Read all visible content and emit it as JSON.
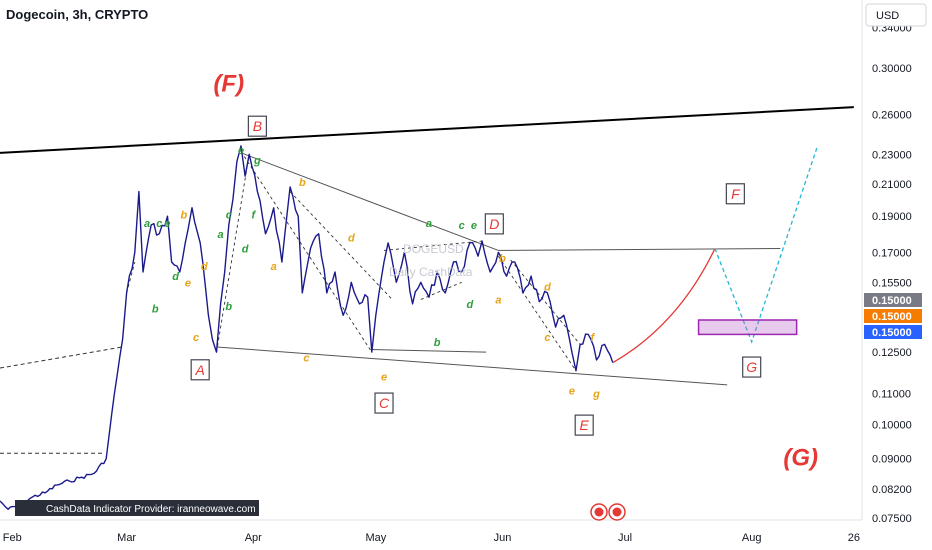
{
  "header": {
    "title": "Dogecoin, 3h, CRYPTO",
    "currency": "USD",
    "watermark_symbol": "DOGEUSD",
    "watermark_text": "Daily CashData"
  },
  "footer": {
    "provider": "CashData Indicator Provider: iranneowave.com"
  },
  "colors": {
    "price_line": "#1b1a8c",
    "wave_red": "#e53935",
    "wave_green": "#2e9e3a",
    "wave_orange": "#e8a317",
    "projection_red": "#e53935",
    "projection_cyan": "#21b7d6",
    "target_box": "#9c27b0",
    "tag_gray": "#787b86",
    "tag_orange": "#f57c00",
    "tag_blue": "#2962ff"
  },
  "price_tags": [
    "0.15000",
    "0.15000",
    "0.15000"
  ],
  "chart_data": {
    "type": "line",
    "title": "Dogecoin, 3h, CRYPTO",
    "y_unit": "USD",
    "y_scale": "log",
    "ylim": [
      0.0745,
      0.37
    ],
    "xlim": [
      "2023-01-29",
      "2023-08-28"
    ],
    "x_ticks": [
      {
        "label": "Feb",
        "date": "2023-02-01"
      },
      {
        "label": "Mar",
        "date": "2023-03-01"
      },
      {
        "label": "Apr",
        "date": "2023-04-01"
      },
      {
        "label": "May",
        "date": "2023-05-01"
      },
      {
        "label": "Jun",
        "date": "2023-06-01"
      },
      {
        "label": "Jul",
        "date": "2023-07-01"
      },
      {
        "label": "Aug",
        "date": "2023-08-01"
      },
      {
        "label": "26",
        "date": "2023-08-26"
      }
    ],
    "y_ticks": [
      "0.34000",
      "0.30000",
      "0.26000",
      "0.23000",
      "0.21000",
      "0.19000",
      "0.17000",
      "0.15500",
      "0.12500",
      "0.11000",
      "0.10000",
      "0.09000",
      "0.08200",
      "0.07500"
    ],
    "series": [
      {
        "values": [
          [
            "2023-01-29",
            0.079
          ],
          [
            "2023-01-31",
            0.077
          ],
          [
            "2023-02-03",
            0.078
          ],
          [
            "2023-02-06",
            0.08
          ],
          [
            "2023-02-09",
            0.081
          ],
          [
            "2023-02-12",
            0.083
          ],
          [
            "2023-02-15",
            0.084
          ],
          [
            "2023-02-18",
            0.085
          ],
          [
            "2023-02-21",
            0.086
          ],
          [
            "2023-02-24",
            0.09
          ],
          [
            "2023-02-26",
            0.11
          ],
          [
            "2023-02-28",
            0.13
          ],
          [
            "2023-03-01",
            0.15
          ],
          [
            "2023-03-03",
            0.17
          ],
          [
            "2023-03-04",
            0.205
          ],
          [
            "2023-03-05",
            0.16
          ],
          [
            "2023-03-07",
            0.185
          ],
          [
            "2023-03-09",
            0.18
          ],
          [
            "2023-03-11",
            0.19
          ],
          [
            "2023-03-12",
            0.165
          ],
          [
            "2023-03-14",
            0.16
          ],
          [
            "2023-03-16",
            0.182
          ],
          [
            "2023-03-17",
            0.195
          ],
          [
            "2023-03-19",
            0.175
          ],
          [
            "2023-03-21",
            0.14
          ],
          [
            "2023-03-22",
            0.13
          ],
          [
            "2023-03-23",
            0.125
          ],
          [
            "2023-03-24",
            0.145
          ],
          [
            "2023-03-25",
            0.16
          ],
          [
            "2023-03-26",
            0.185
          ],
          [
            "2023-03-27",
            0.2
          ],
          [
            "2023-03-28",
            0.225
          ],
          [
            "2023-03-29",
            0.236
          ],
          [
            "2023-03-30",
            0.215
          ],
          [
            "2023-03-31",
            0.23
          ],
          [
            "2023-04-02",
            0.205
          ],
          [
            "2023-04-04",
            0.18
          ],
          [
            "2023-04-06",
            0.195
          ],
          [
            "2023-04-08",
            0.165
          ],
          [
            "2023-04-10",
            0.208
          ],
          [
            "2023-04-12",
            0.19
          ],
          [
            "2023-04-13",
            0.15
          ],
          [
            "2023-04-15",
            0.172
          ],
          [
            "2023-04-17",
            0.18
          ],
          [
            "2023-04-19",
            0.15
          ],
          [
            "2023-04-21",
            0.16
          ],
          [
            "2023-04-23",
            0.14
          ],
          [
            "2023-04-25",
            0.155
          ],
          [
            "2023-04-27",
            0.145
          ],
          [
            "2023-04-29",
            0.148
          ],
          [
            "2023-04-30",
            0.125
          ],
          [
            "2023-05-01",
            0.14
          ],
          [
            "2023-05-03",
            0.165
          ],
          [
            "2023-05-04",
            0.175
          ],
          [
            "2023-05-06",
            0.155
          ],
          [
            "2023-05-08",
            0.17
          ],
          [
            "2023-05-10",
            0.145
          ],
          [
            "2023-05-12",
            0.155
          ],
          [
            "2023-05-14",
            0.148
          ],
          [
            "2023-05-16",
            0.16
          ],
          [
            "2023-05-18",
            0.15
          ],
          [
            "2023-05-20",
            0.165
          ],
          [
            "2023-05-22",
            0.16
          ],
          [
            "2023-05-24",
            0.175
          ],
          [
            "2023-05-26",
            0.168
          ],
          [
            "2023-05-27",
            0.176
          ],
          [
            "2023-05-29",
            0.16
          ],
          [
            "2023-05-31",
            0.17
          ],
          [
            "2023-06-02",
            0.158
          ],
          [
            "2023-06-04",
            0.165
          ],
          [
            "2023-06-06",
            0.15
          ],
          [
            "2023-06-08",
            0.158
          ],
          [
            "2023-06-10",
            0.146
          ],
          [
            "2023-06-12",
            0.15
          ],
          [
            "2023-06-14",
            0.135
          ],
          [
            "2023-06-16",
            0.14
          ],
          [
            "2023-06-18",
            0.125
          ],
          [
            "2023-06-19",
            0.118
          ],
          [
            "2023-06-20",
            0.128
          ],
          [
            "2023-06-22",
            0.132
          ],
          [
            "2023-06-24",
            0.122
          ],
          [
            "2023-06-26",
            0.128
          ],
          [
            "2023-06-28",
            0.121
          ]
        ]
      }
    ],
    "trendlines": [
      {
        "from": [
          "2023-01-29",
          0.231
        ],
        "to": [
          "2023-08-26",
          0.266
        ],
        "style": "solid-black-thick"
      },
      {
        "from": [
          "2023-03-29",
          0.231
        ],
        "to": [
          "2023-05-31",
          0.171
        ],
        "style": "solid-gray"
      },
      {
        "from": [
          "2023-05-31",
          0.171
        ],
        "to": [
          "2023-08-08",
          0.172
        ],
        "style": "solid-gray"
      },
      {
        "from": [
          "2023-03-23",
          0.127
        ],
        "to": [
          "2023-07-26",
          0.113
        ],
        "style": "solid-gray"
      },
      {
        "from": [
          "2023-04-30",
          0.126
        ],
        "to": [
          "2023-05-28",
          0.125
        ],
        "style": "solid-gray"
      }
    ],
    "projections": [
      {
        "style": "red-curve",
        "points": [
          [
            "2023-06-28",
            0.121
          ],
          [
            "2023-07-14",
            0.141
          ],
          [
            "2023-07-23",
            0.172
          ]
        ]
      },
      {
        "style": "cyan-dotted",
        "points": [
          [
            "2023-07-23",
            0.172
          ],
          [
            "2023-08-01",
            0.129
          ],
          [
            "2023-08-17",
            0.235
          ]
        ]
      }
    ],
    "target_zone": {
      "x": [
        "2023-07-19",
        "2023-08-12"
      ],
      "y": [
        0.132,
        0.138
      ]
    },
    "wave_labels": [
      {
        "text": "(F)",
        "x": "2023-03-26",
        "y": 0.286,
        "style": "big"
      },
      {
        "text": "(G)",
        "x": "2023-08-13",
        "y": 0.0903,
        "style": "big"
      },
      {
        "text": "B",
        "x": "2023-04-02",
        "y": 0.25,
        "style": "box-red"
      },
      {
        "text": "A",
        "x": "2023-03-19",
        "y": 0.118,
        "style": "box-red"
      },
      {
        "text": "C",
        "x": "2023-05-03",
        "y": 0.1065,
        "style": "box-red"
      },
      {
        "text": "D",
        "x": "2023-05-30",
        "y": 0.185,
        "style": "box-red"
      },
      {
        "text": "E",
        "x": "2023-06-21",
        "y": 0.0995,
        "style": "box-red"
      },
      {
        "text": "F",
        "x": "2023-07-28",
        "y": 0.203,
        "style": "box-red"
      },
      {
        "text": "G",
        "x": "2023-08-01",
        "y": 0.119,
        "style": "box-red"
      },
      {
        "text": "a",
        "x": "2023-03-06",
        "y": 0.186,
        "style": "green"
      },
      {
        "text": "c",
        "x": "2023-03-09",
        "y": 0.186,
        "style": "green"
      },
      {
        "text": "e",
        "x": "2023-03-11",
        "y": 0.186,
        "style": "green"
      },
      {
        "text": "b",
        "x": "2023-03-15",
        "y": 0.191,
        "style": "orange"
      },
      {
        "text": "d",
        "x": "2023-03-13",
        "y": 0.158,
        "style": "green"
      },
      {
        "text": "b",
        "x": "2023-03-08",
        "y": 0.143,
        "style": "green"
      },
      {
        "text": "d",
        "x": "2023-03-20",
        "y": 0.163,
        "style": "orange"
      },
      {
        "text": "e",
        "x": "2023-03-16",
        "y": 0.155,
        "style": "orange"
      },
      {
        "text": "c",
        "x": "2023-03-18",
        "y": 0.131,
        "style": "orange"
      },
      {
        "text": "b",
        "x": "2023-03-26",
        "y": 0.144,
        "style": "green"
      },
      {
        "text": "a",
        "x": "2023-03-24",
        "y": 0.18,
        "style": "green"
      },
      {
        "text": "c",
        "x": "2023-03-26",
        "y": 0.191,
        "style": "green"
      },
      {
        "text": "d",
        "x": "2023-03-30",
        "y": 0.172,
        "style": "green"
      },
      {
        "text": "e",
        "x": "2023-03-29",
        "y": 0.233,
        "style": "green"
      },
      {
        "text": "g",
        "x": "2023-04-02",
        "y": 0.226,
        "style": "green"
      },
      {
        "text": "f",
        "x": "2023-04-01",
        "y": 0.191,
        "style": "green"
      },
      {
        "text": "b",
        "x": "2023-04-13",
        "y": 0.211,
        "style": "orange"
      },
      {
        "text": "d",
        "x": "2023-04-25",
        "y": 0.178,
        "style": "orange"
      },
      {
        "text": "a",
        "x": "2023-04-06",
        "y": 0.163,
        "style": "orange"
      },
      {
        "text": "c",
        "x": "2023-04-14",
        "y": 0.123,
        "style": "orange"
      },
      {
        "text": "e",
        "x": "2023-05-03",
        "y": 0.116,
        "style": "orange"
      },
      {
        "text": "a",
        "x": "2023-05-14",
        "y": 0.186,
        "style": "green"
      },
      {
        "text": "b",
        "x": "2023-05-16",
        "y": 0.129,
        "style": "green"
      },
      {
        "text": "c",
        "x": "2023-05-22",
        "y": 0.185,
        "style": "green"
      },
      {
        "text": "d",
        "x": "2023-05-24",
        "y": 0.145,
        "style": "green"
      },
      {
        "text": "e",
        "x": "2023-05-25",
        "y": 0.185,
        "style": "green"
      },
      {
        "text": "b",
        "x": "2023-06-01",
        "y": 0.167,
        "style": "orange"
      },
      {
        "text": "a",
        "x": "2023-05-31",
        "y": 0.147,
        "style": "orange"
      },
      {
        "text": "d",
        "x": "2023-06-12",
        "y": 0.153,
        "style": "orange"
      },
      {
        "text": "c",
        "x": "2023-06-12",
        "y": 0.131,
        "style": "orange"
      },
      {
        "text": "f",
        "x": "2023-06-23",
        "y": 0.131,
        "style": "orange"
      },
      {
        "text": "e",
        "x": "2023-06-18",
        "y": 0.111,
        "style": "orange"
      },
      {
        "text": "g",
        "x": "2023-06-24",
        "y": 0.11,
        "style": "orange"
      }
    ]
  }
}
